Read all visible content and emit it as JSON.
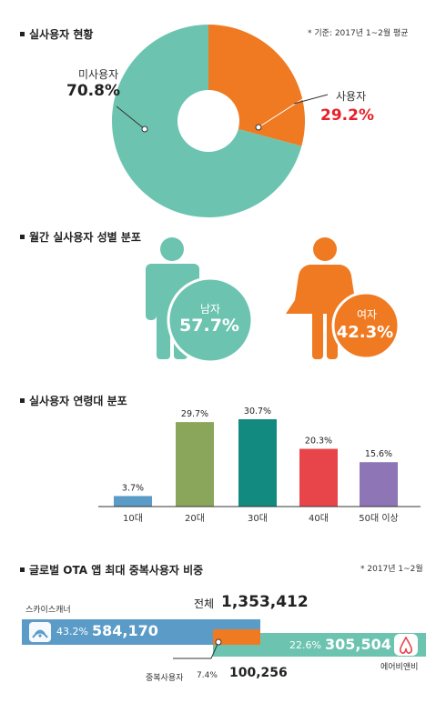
{
  "sections": {
    "users": {
      "title": "실사용자 현황",
      "note": "* 기준: 2017년 1~2월 평균"
    },
    "gender": {
      "title": "월간 실사용자 성별 분포"
    },
    "age": {
      "title": "실사용자 연령대 분포"
    },
    "global": {
      "title": "글로벌 OTA 앱 최대 중복사용자 비중",
      "note": "* 2017년 1~2월"
    }
  },
  "colors": {
    "teal": "#6cc4b0",
    "orange": "#f07a22",
    "red": "#e8202a"
  },
  "chart_data": [
    {
      "type": "pie",
      "slices": [
        {
          "name": "미사용자",
          "value": 70.8,
          "label": "70.8%",
          "color": "#6cc4b0"
        },
        {
          "name": "사용자",
          "value": 29.2,
          "label": "29.2%",
          "color": "#f07a22"
        }
      ]
    },
    {
      "type": "pie",
      "slices": [
        {
          "name": "남자",
          "value": 57.7,
          "label": "57.7%",
          "color": "#6cc4b0"
        },
        {
          "name": "여자",
          "value": 42.3,
          "label": "42.3%",
          "color": "#f07a22"
        }
      ]
    },
    {
      "type": "bar",
      "categories": [
        "10대",
        "20대",
        "30대",
        "40대",
        "50대 이상"
      ],
      "values": [
        3.7,
        29.7,
        30.7,
        20.3,
        15.6
      ],
      "labels": [
        "3.7%",
        "29.7%",
        "30.7%",
        "20.3%",
        "15.6%"
      ],
      "colors": [
        "#5b9bc7",
        "#8aa65a",
        "#138a80",
        "#e8454a",
        "#8d75b6"
      ],
      "ylim": [
        0,
        30.7
      ]
    },
    {
      "type": "bar",
      "total_label": "전체",
      "total": "1,353,412",
      "segments": [
        {
          "name": "스카이스캐너",
          "pct": "43.2%",
          "value": "584,170",
          "share": 43.2,
          "color": "#5b9bc7"
        },
        {
          "name": "중복사용자",
          "pct": "7.4%",
          "value": "100,256",
          "share": 7.4,
          "color": "#f07a22"
        },
        {
          "name": "에어비앤비",
          "pct": "22.6%",
          "value": "305,504",
          "share": 22.6,
          "color": "#6cc4b0"
        }
      ]
    }
  ]
}
